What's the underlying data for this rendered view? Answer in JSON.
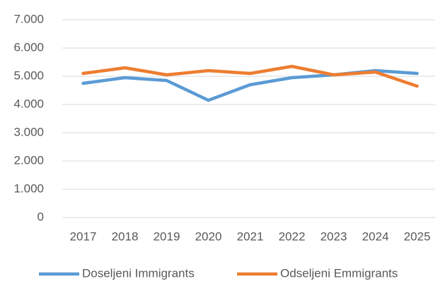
{
  "chart_data": {
    "type": "line",
    "categories": [
      "2017",
      "2018",
      "2019",
      "2020",
      "2021",
      "2022",
      "2023",
      "2024",
      "2025"
    ],
    "series": [
      {
        "name": "Doseljeni Immigrants",
        "color": "#5b9bd5",
        "values": [
          4750,
          4950,
          4850,
          4150,
          4700,
          4950,
          5050,
          5200,
          5100
        ]
      },
      {
        "name": "Odseljeni Emmigrants",
        "color": "#ed7d31",
        "values": [
          5100,
          5300,
          5050,
          5200,
          5100,
          5350,
          5050,
          5150,
          4650
        ]
      }
    ],
    "ylim": [
      0,
      7000
    ],
    "yticks": [
      0,
      {
        "value": 1000,
        "label": "1.000"
      },
      {
        "value": 2000,
        "label": "2.000"
      },
      {
        "value": 3000,
        "label": "3.000"
      },
      {
        "value": 4000,
        "label": "4.000"
      },
      {
        "value": 5000,
        "label": "5.000"
      },
      {
        "value": 6000,
        "label": "6.000"
      },
      {
        "value": 7000,
        "label": "7.000"
      }
    ],
    "grid": true,
    "legend": "bottom"
  }
}
